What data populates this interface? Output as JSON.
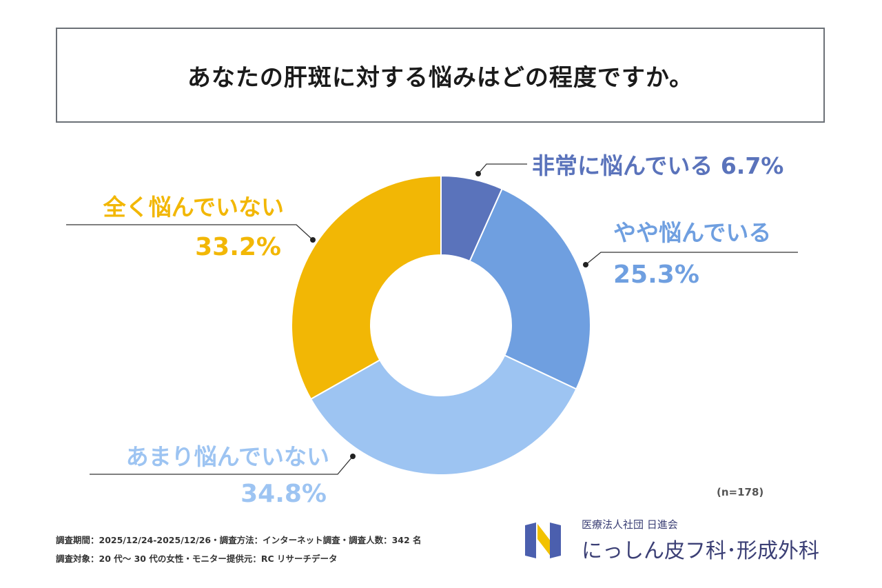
{
  "title": "あなたの肝斑に対する悩みはどの程度ですか。",
  "sample_size": "(n=178)",
  "footnote": {
    "line1": "調査期間：2025/12/24-2025/12/26・調査方法：インターネット調査・調査人数：342 名",
    "line2": "調査対象：20 代～ 30 代の女性・モニター提供元：RC リサーチデータ"
  },
  "logo": {
    "org": "医療法人社団 日進会",
    "clinic": "にっしん皮フ科･形成外科",
    "colors": {
      "yellow": "#f2c200",
      "blue": "#4b5fae"
    }
  },
  "chart_data": {
    "type": "pie",
    "style": "donut",
    "start": "12 o'clock, clockwise",
    "slices": [
      {
        "label": "非常に悩んでいる",
        "value": 6.7,
        "display": "6.7%",
        "color": "#5a73bb"
      },
      {
        "label": "やや悩んでいる",
        "value": 25.3,
        "display": "25.3%",
        "color": "#6f9fe0"
      },
      {
        "label": "あまり悩んでいない",
        "value": 34.8,
        "display": "34.8%",
        "color": "#9dc4f2"
      },
      {
        "label": "全く悩んでいない",
        "value": 33.2,
        "display": "33.2%",
        "color": "#f2b705"
      }
    ]
  }
}
